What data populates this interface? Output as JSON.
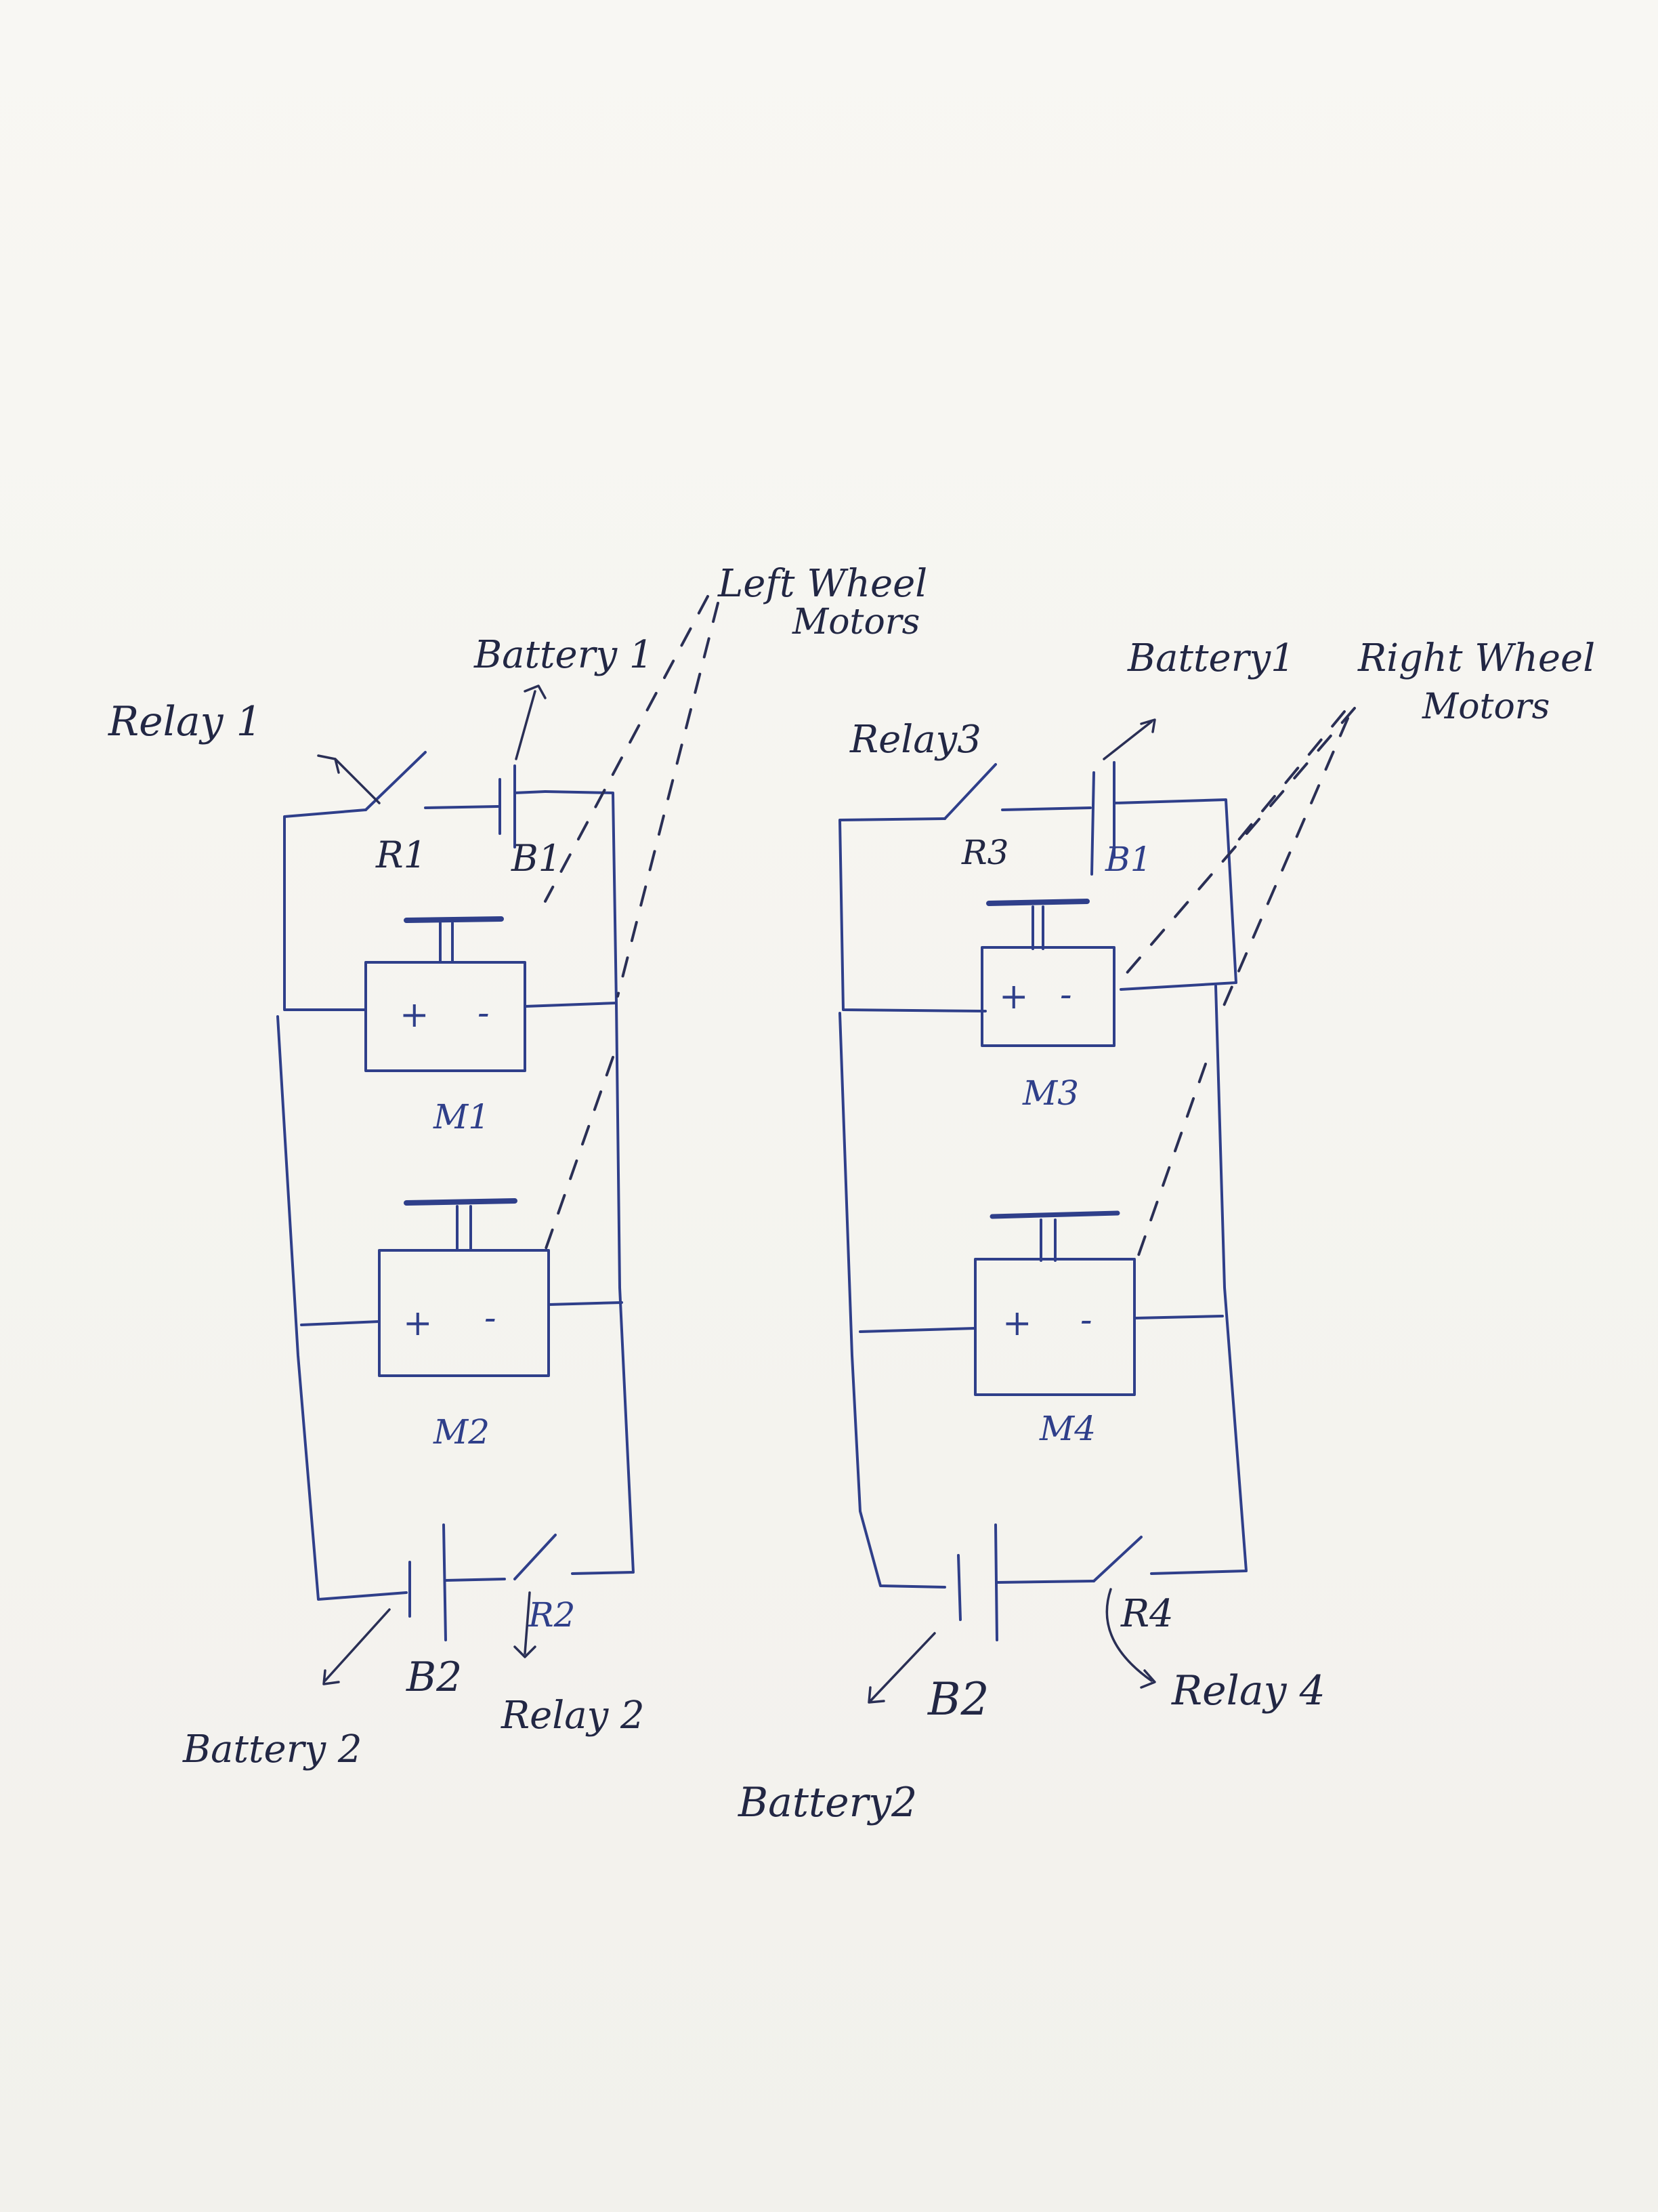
{
  "labels": {
    "left_wheel_motors": [
      "Left Wheel",
      "Motors"
    ],
    "right_wheel_motors": [
      "Right Wheel",
      "Motors"
    ],
    "relay1": "Relay 1",
    "relay2": "Relay 2",
    "relay3": "Relay3",
    "relay4": "Relay 4",
    "battery1_left": "Battery 1",
    "battery1_right": "Battery1",
    "battery2_left": "Battery 2",
    "battery2_right": "Battery2",
    "r1": "R1",
    "r2": "R2",
    "r3": "R3",
    "r4": "R4",
    "b1_left": "B1",
    "b1_right": "B1",
    "b2_left": "B2",
    "b2_right": "B2",
    "m1": "M1",
    "m2": "M2",
    "m3": "M3",
    "m4": "M4",
    "plus": "+",
    "minus": "-"
  },
  "colors": {
    "wire": "#2f3f8a",
    "annotation": "#2a2f55",
    "paper": "#f7f6f2"
  }
}
